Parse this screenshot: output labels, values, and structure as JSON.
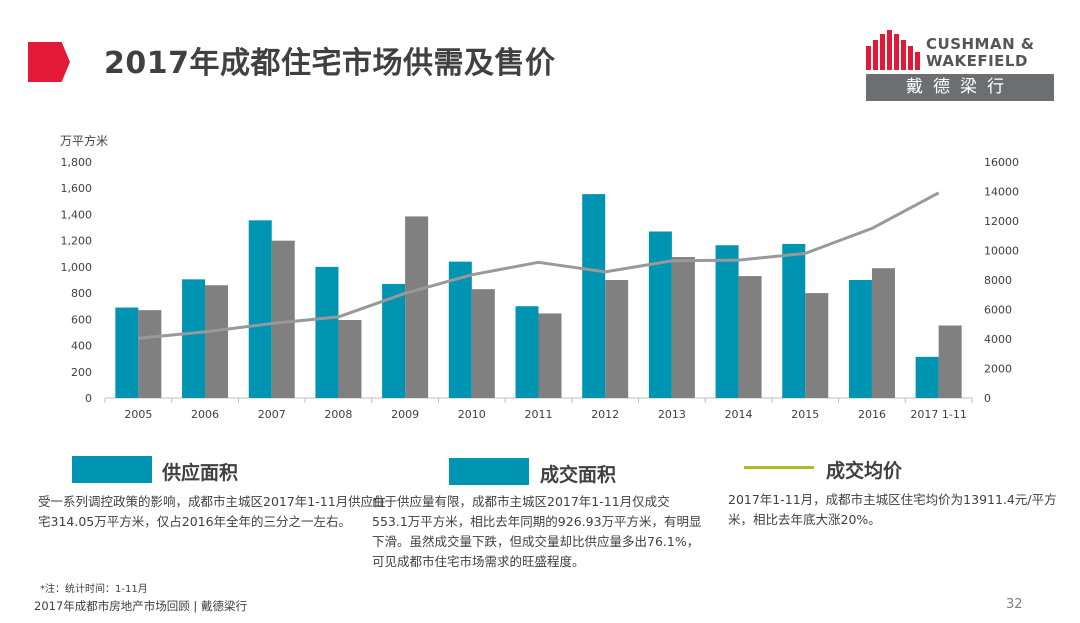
{
  "header": {
    "title": "2017年成都住宅市场供需及售价"
  },
  "logo": {
    "line1": "CUSHMAN &",
    "line2": "WAKEFIELD",
    "chinese": "戴德梁行"
  },
  "colors": {
    "supply": "#0094b3",
    "transaction": "#808080",
    "price_line": "#999999",
    "legend_price": "#b5b827",
    "accent": "#e31937"
  },
  "chart_data": {
    "type": "bar",
    "y_unit_label": "万平方米",
    "categories": [
      "2005",
      "2006",
      "2007",
      "2008",
      "2009",
      "2010",
      "2011",
      "2012",
      "2013",
      "2014",
      "2015",
      "2016",
      "2017 1-11"
    ],
    "series": [
      {
        "name": "供应面积",
        "values": [
          690,
          905,
          1355,
          1000,
          870,
          1040,
          700,
          1555,
          1270,
          1165,
          1175,
          900,
          314.05
        ]
      },
      {
        "name": "成交面积",
        "values": [
          670,
          860,
          1200,
          595,
          1385,
          830,
          645,
          900,
          1075,
          930,
          800,
          990,
          553.1
        ]
      },
      {
        "name": "成交均价",
        "type": "line",
        "axis": "right",
        "values": [
          4050,
          4480,
          5050,
          5500,
          7100,
          8350,
          9200,
          8550,
          9300,
          9350,
          9800,
          11500,
          13911.4
        ]
      }
    ],
    "ylim_left": [
      0,
      1800
    ],
    "yticks_left": [
      "0",
      "200",
      "400",
      "600",
      "800",
      "1,000",
      "1,200",
      "1,400",
      "1,600",
      "1,800"
    ],
    "ylim_right": [
      0,
      16000
    ],
    "yticks_right": [
      "0",
      "2000",
      "4000",
      "6000",
      "8000",
      "10000",
      "12000",
      "14000",
      "16000"
    ],
    "grid": false
  },
  "legend": {
    "supply": "供应面积",
    "transaction": "成交面积",
    "price": "成交均价"
  },
  "descriptions": {
    "supply": "受一系列调控政策的影响，成都市主城区2017年1-11月供应住宅314.05万平方米，仅占2016年全年的三分之一左右。",
    "transaction": "由于供应量有限，成都市主城区2017年1-11月仅成交553.1万平方米，相比去年同期的926.93万平方米，有明显下滑。虽然成交量下跌，但成交量却比供应量多出76.1%，可见成都市住宅市场需求的旺盛程度。",
    "price": "2017年1-11月，成都市主城区住宅均价为13911.4元/平方米，相比去年底大涨20%。"
  },
  "note": "*注：统计时间：1-11月",
  "footer": {
    "text": "2017年成都市房地产市场回顾 | 戴德梁行",
    "page": "32"
  }
}
